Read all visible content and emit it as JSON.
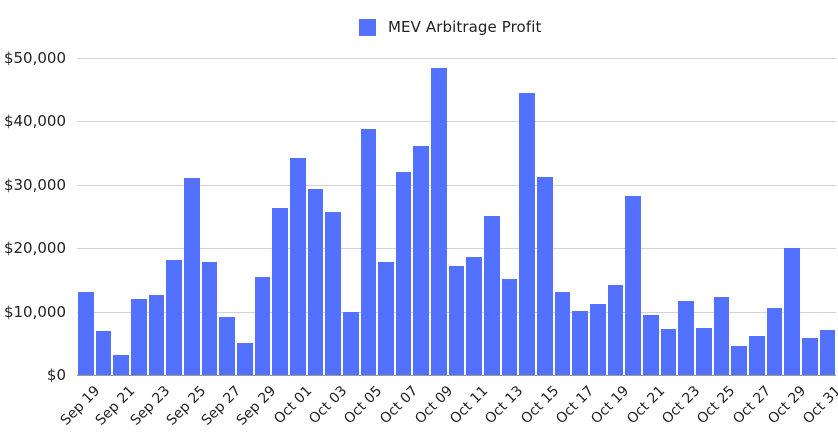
{
  "legend": {
    "label": "MEV Arbitrage Profit",
    "color": "#5271ff"
  },
  "y_axis": {
    "ticks": [
      "$0",
      "$10,000",
      "$20,000",
      "$30,000",
      "$40,000",
      "$50,000"
    ],
    "tick_values": [
      0,
      10000,
      20000,
      30000,
      40000,
      50000
    ],
    "max": 50000
  },
  "x_axis": {
    "tick_labels": [
      "Sep 19",
      "Sep 21",
      "Sep 23",
      "Sep 25",
      "Sep 27",
      "Sep 29",
      "Oct 01",
      "Oct 03",
      "Oct 05",
      "Oct 07",
      "Oct 09",
      "Oct 11",
      "Oct 13",
      "Oct 15",
      "Oct 17",
      "Oct 19",
      "Oct 21",
      "Oct 23",
      "Oct 25",
      "Oct 27",
      "Oct 29",
      "Oct 31"
    ]
  },
  "chart_data": {
    "type": "bar",
    "title": "",
    "xlabel": "",
    "ylabel": "",
    "ylim": [
      0,
      50000
    ],
    "grid": true,
    "legend_position": "top",
    "categories": [
      "Sep 19",
      "Sep 20",
      "Sep 21",
      "Sep 22",
      "Sep 23",
      "Sep 24",
      "Sep 25",
      "Sep 26",
      "Sep 27",
      "Sep 28",
      "Sep 29",
      "Sep 30",
      "Oct 01",
      "Oct 02",
      "Oct 03",
      "Oct 04",
      "Oct 05",
      "Oct 06",
      "Oct 07",
      "Oct 08",
      "Oct 09",
      "Oct 10",
      "Oct 11",
      "Oct 12",
      "Oct 13",
      "Oct 14",
      "Oct 15",
      "Oct 16",
      "Oct 17",
      "Oct 18",
      "Oct 19",
      "Oct 20",
      "Oct 21",
      "Oct 22",
      "Oct 23",
      "Oct 24",
      "Oct 25",
      "Oct 26",
      "Oct 27",
      "Oct 28",
      "Oct 29",
      "Oct 30",
      "Oct 31"
    ],
    "series": [
      {
        "name": "MEV Arbitrage Profit",
        "color": "#5271ff",
        "values": [
          13100,
          6900,
          3150,
          12000,
          12600,
          18100,
          31100,
          17900,
          9200,
          5050,
          15500,
          26300,
          34200,
          29300,
          25700,
          10000,
          38800,
          17800,
          32100,
          36100,
          48500,
          17200,
          18600,
          25100,
          15200,
          44500,
          31300,
          13100,
          10100,
          11250,
          14200,
          28200,
          9500,
          7300,
          11600,
          7350,
          12300,
          4600,
          6150,
          10600,
          20100,
          5800,
          7100
        ]
      }
    ]
  }
}
